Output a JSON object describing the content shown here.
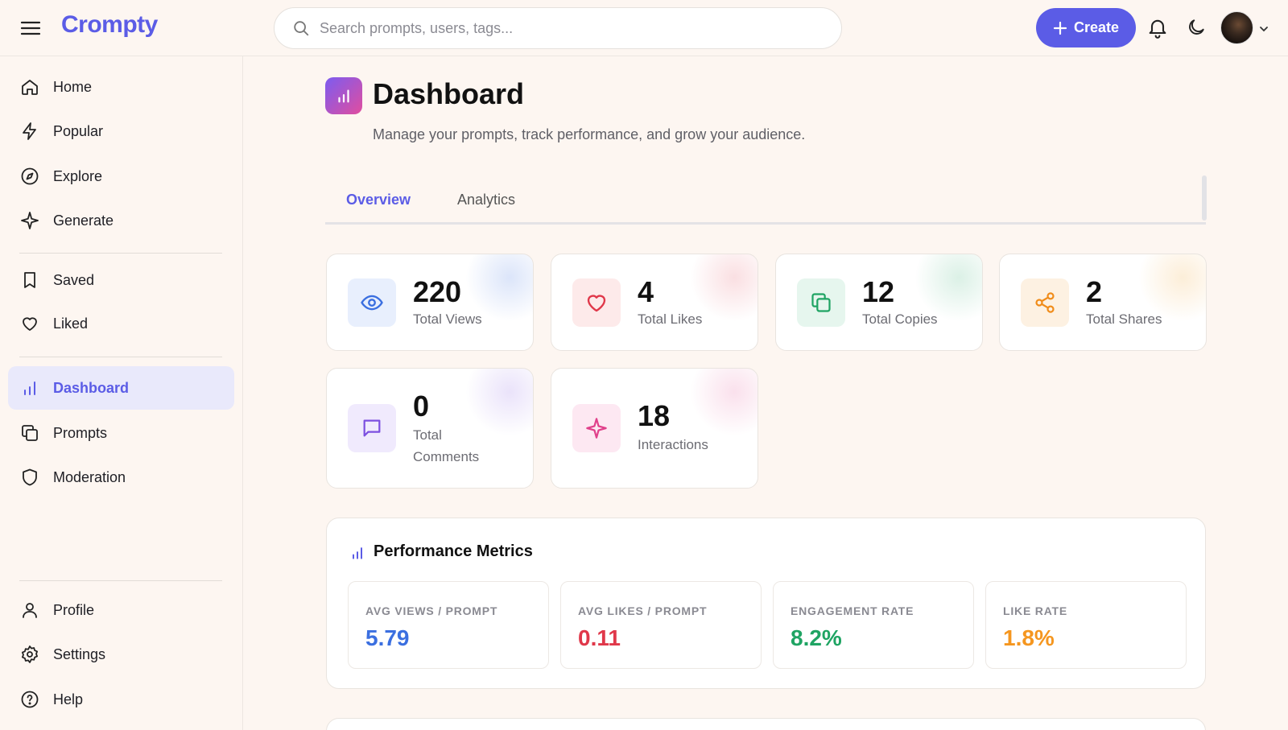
{
  "app": {
    "logo": "Crompty"
  },
  "search": {
    "placeholder": "Search prompts, users, tags..."
  },
  "header": {
    "create_label": "Create"
  },
  "sidebar": {
    "items": [
      {
        "label": "Home",
        "icon": "home-icon"
      },
      {
        "label": "Popular",
        "icon": "lightning-icon"
      },
      {
        "label": "Explore",
        "icon": "compass-icon"
      },
      {
        "label": "Generate",
        "icon": "sparkle-icon"
      },
      {
        "label": "Saved",
        "icon": "bookmark-icon"
      },
      {
        "label": "Liked",
        "icon": "heart-icon"
      },
      {
        "label": "Dashboard",
        "icon": "bar-chart-icon",
        "active": true
      },
      {
        "label": "Prompts",
        "icon": "copy-icon"
      },
      {
        "label": "Moderation",
        "icon": "shield-icon"
      },
      {
        "label": "Profile",
        "icon": "user-icon"
      },
      {
        "label": "Settings",
        "icon": "gear-icon"
      },
      {
        "label": "Help",
        "icon": "help-icon"
      }
    ]
  },
  "page": {
    "title": "Dashboard",
    "subtitle": "Manage your prompts, track performance, and grow your audience."
  },
  "tabs": [
    {
      "label": "Overview",
      "active": true
    },
    {
      "label": "Analytics",
      "active": false
    }
  ],
  "stats": [
    {
      "value": "220",
      "label": "Total Views",
      "icon": "eye-icon",
      "color": "#3b6fe0"
    },
    {
      "value": "4",
      "label": "Total Likes",
      "icon": "heart-icon",
      "color": "#e0384a"
    },
    {
      "value": "12",
      "label": "Total Copies",
      "icon": "copy-icon",
      "color": "#1fa463"
    },
    {
      "value": "2",
      "label": "Total Shares",
      "icon": "share-icon",
      "color": "#f08c1a"
    },
    {
      "value": "0",
      "label": "Total Comments",
      "icon": "comment-icon",
      "color": "#7c4fe0"
    },
    {
      "value": "18",
      "label": "Interactions",
      "icon": "sparkle-icon",
      "color": "#e0408a"
    }
  ],
  "performance": {
    "title": "Performance Metrics",
    "metrics": [
      {
        "label": "AVG VIEWS / PROMPT",
        "value": "5.79",
        "color": "#3b6fe0"
      },
      {
        "label": "AVG LIKES / PROMPT",
        "value": "0.11",
        "color": "#e0384a"
      },
      {
        "label": "ENGAGEMENT RATE",
        "value": "8.2%",
        "color": "#1fa463"
      },
      {
        "label": "LIKE RATE",
        "value": "1.8%",
        "color": "#f5961f"
      }
    ]
  }
}
